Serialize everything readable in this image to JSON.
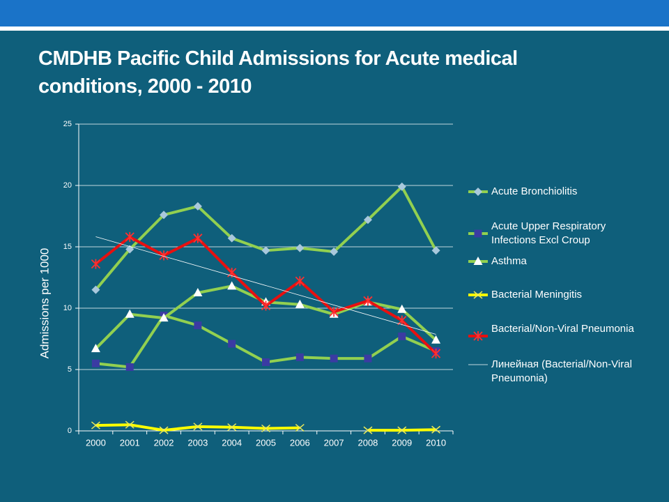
{
  "chart_data": {
    "type": "line",
    "title": "CMDHB Pacific Child Admissions for Acute medical conditions, 2000 - 2010",
    "y_label": "Admissions per 1000",
    "categories": [
      "2000",
      "2001",
      "2002",
      "2003",
      "2004",
      "2005",
      "2006",
      "2007",
      "2008",
      "2009",
      "2010"
    ],
    "ylim": [
      0,
      25
    ],
    "yticks": [
      0,
      5,
      10,
      15,
      20,
      25
    ],
    "grid": true,
    "legend": "right",
    "series": [
      {
        "name": "Acute Bronchiolitis",
        "color": "#92d050",
        "marker": "diamond",
        "marker_color": "#a9c8dc",
        "values": [
          11.5,
          14.8,
          17.6,
          18.3,
          15.7,
          14.7,
          14.9,
          14.6,
          17.2,
          19.9,
          14.7
        ]
      },
      {
        "name": "Acute Upper Respiratory Infections Excl Croup",
        "color": "#92d050",
        "marker": "square",
        "marker_color": "#3b3ba3",
        "values": [
          5.5,
          5.2,
          9.4,
          8.6,
          7.1,
          5.6,
          6.0,
          5.9,
          5.9,
          7.7,
          6.5
        ]
      },
      {
        "name": "Asthma",
        "color": "#92d050",
        "marker": "triangle",
        "marker_color": "#ffffff",
        "values": [
          6.7,
          9.5,
          9.2,
          11.25,
          11.8,
          10.5,
          10.3,
          9.5,
          10.5,
          9.9,
          7.4
        ]
      },
      {
        "name": "Bacterial Meningitis",
        "color": "#ffff00",
        "marker": "x",
        "marker_color": "#e8e85a",
        "values": [
          0.45,
          0.5,
          0.05,
          0.35,
          0.3,
          0.2,
          0.25,
          null,
          0.05,
          0.05,
          0.1
        ]
      },
      {
        "name": "Bacterial/Non-Viral Pneumonia",
        "color": "#e81010",
        "marker": "star",
        "marker_color": "#ff3030",
        "values": [
          13.6,
          15.8,
          14.3,
          15.7,
          12.9,
          10.2,
          12.2,
          9.7,
          10.6,
          9.0,
          6.3
        ]
      }
    ],
    "trendline": {
      "name": "Линейная (Bacterial/Non-Viral Pneumonia)",
      "color": "#ffffff"
    }
  }
}
